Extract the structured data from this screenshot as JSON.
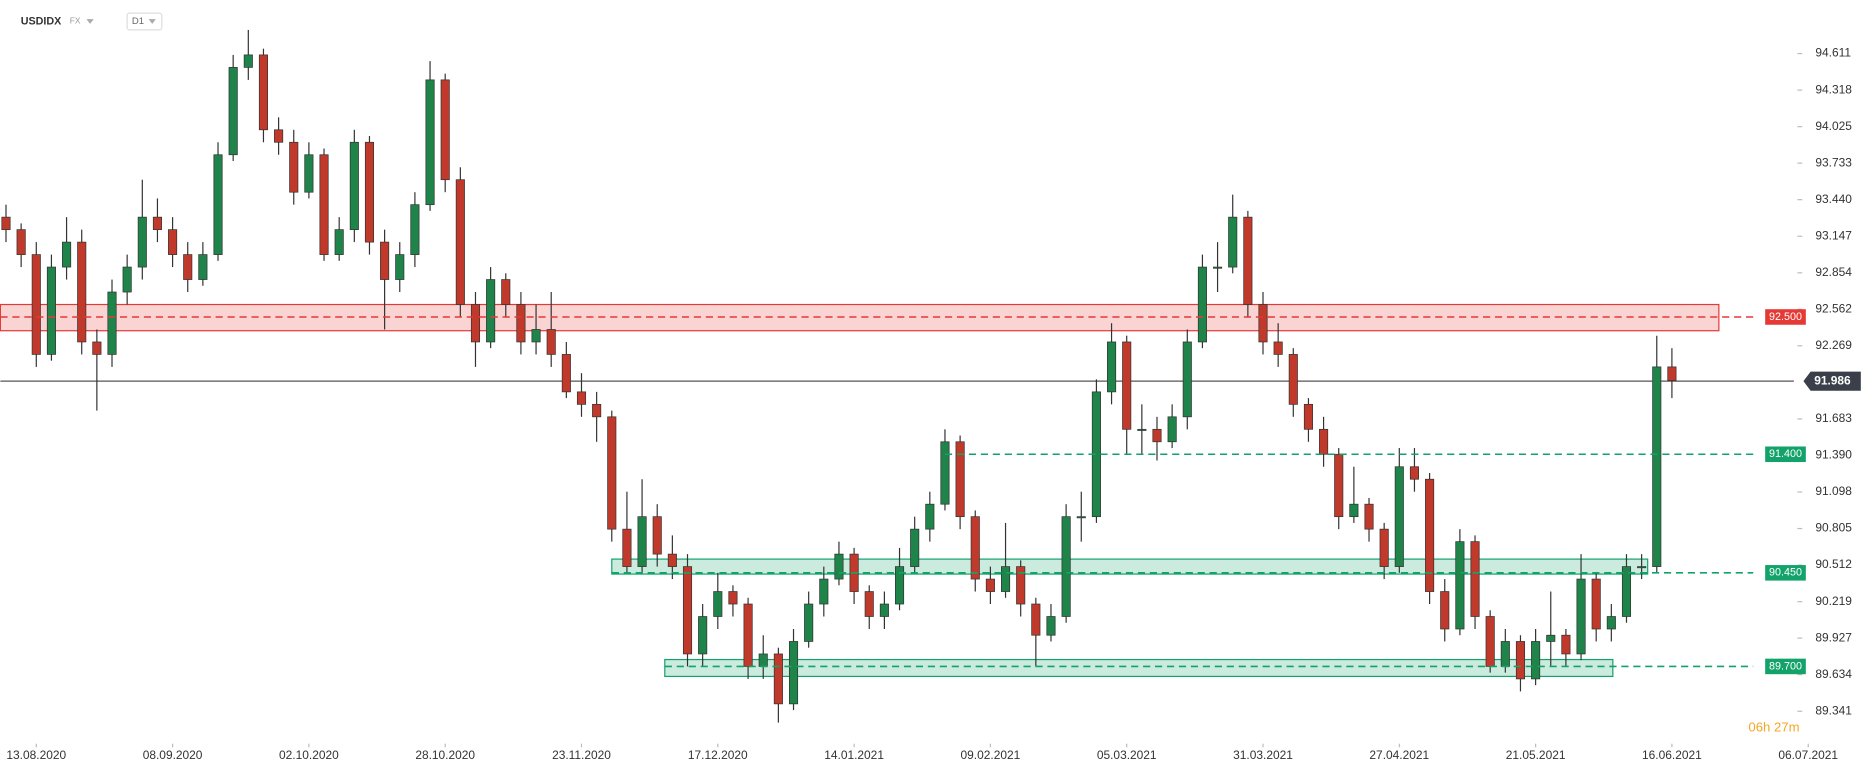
{
  "chart_data": {
    "type": "candlestick",
    "title": "USDIDX",
    "market": "FX",
    "interval": "D1",
    "countdown": "06h 27m",
    "up_color": "#1e8449",
    "down_color": "#c0392b",
    "xlim": [
      -0.37,
      119
    ],
    "xticks": [
      {
        "value": 2,
        "label": "13.08.2020"
      },
      {
        "value": 11,
        "label": "08.09.2020"
      },
      {
        "value": 20,
        "label": "02.10.2020"
      },
      {
        "value": 29,
        "label": "28.10.2020"
      },
      {
        "value": 38,
        "label": "23.11.2020"
      },
      {
        "value": 47,
        "label": "17.12.2020"
      },
      {
        "value": 56,
        "label": "14.01.2021"
      },
      {
        "value": 65,
        "label": "09.02.2021"
      },
      {
        "value": 74,
        "label": "05.03.2021"
      },
      {
        "value": 83,
        "label": "31.03.2021"
      },
      {
        "value": 92,
        "label": "27.04.2021"
      },
      {
        "value": 101,
        "label": "21.05.2021"
      },
      {
        "value": 110,
        "label": "16.06.2021"
      },
      {
        "value": 119,
        "label": "06.07.2021"
      }
    ],
    "ylim": [
      89.1,
      95.04
    ],
    "yticks": [
      94.611,
      94.318,
      94.025,
      93.733,
      {
        "value": 93.44,
        "label": "93.440"
      },
      93.147,
      92.854,
      92.562,
      92.269,
      91.683,
      {
        "value": 91.39,
        "label": "91.390"
      },
      91.098,
      90.805,
      90.512,
      90.219,
      89.927,
      89.634,
      89.341
    ],
    "last_price": 91.986,
    "levels": [
      {
        "value": 92.5,
        "label": "92.500",
        "color": "#e53935",
        "zone": [
          92.39,
          92.6
        ],
        "zone_x": [
          -0.37,
          113.1
        ],
        "line_from": -0.37
      },
      {
        "value": 91.4,
        "label": "91.400",
        "color": "#13a36a",
        "line_from": 62.0
      },
      {
        "value": 90.45,
        "label": "90.450",
        "color": "#13a36a",
        "zone": [
          90.44,
          90.56
        ],
        "zone_x": [
          40,
          108.4
        ],
        "line_from": 40
      },
      {
        "value": 89.7,
        "label": "89.700",
        "color": "#13a36a",
        "zone": [
          89.62,
          89.755
        ],
        "zone_x": [
          43.5,
          106.1
        ],
        "line_from": 43.5
      }
    ],
    "ohlc": [
      [
        93.3,
        93.4,
        93.1,
        93.2
      ],
      [
        93.2,
        93.25,
        92.9,
        93.0
      ],
      [
        93.0,
        93.1,
        92.1,
        92.2
      ],
      [
        92.2,
        93.0,
        92.15,
        92.9
      ],
      [
        92.9,
        93.3,
        92.8,
        93.1
      ],
      [
        93.1,
        93.2,
        92.2,
        92.3
      ],
      [
        92.3,
        92.4,
        91.75,
        92.2
      ],
      [
        92.2,
        92.8,
        92.1,
        92.7
      ],
      [
        92.7,
        93.0,
        92.6,
        92.9
      ],
      [
        92.9,
        93.6,
        92.8,
        93.3
      ],
      [
        93.3,
        93.45,
        93.1,
        93.2
      ],
      [
        93.2,
        93.3,
        92.9,
        93.0
      ],
      [
        93.0,
        93.1,
        92.7,
        92.8
      ],
      [
        92.8,
        93.1,
        92.75,
        93.0
      ],
      [
        93.0,
        93.9,
        92.95,
        93.8
      ],
      [
        93.8,
        94.6,
        93.75,
        94.5
      ],
      [
        94.5,
        94.8,
        94.4,
        94.6
      ],
      [
        94.6,
        94.65,
        93.9,
        94.0
      ],
      [
        94.0,
        94.1,
        93.8,
        93.9
      ],
      [
        93.9,
        94.0,
        93.4,
        93.5
      ],
      [
        93.5,
        93.9,
        93.45,
        93.8
      ],
      [
        93.8,
        93.85,
        92.95,
        93.0
      ],
      [
        93.0,
        93.3,
        92.95,
        93.2
      ],
      [
        93.2,
        94.0,
        93.1,
        93.9
      ],
      [
        93.9,
        93.95,
        93.0,
        93.1
      ],
      [
        93.1,
        93.2,
        92.4,
        92.8
      ],
      [
        92.8,
        93.1,
        92.7,
        93.0
      ],
      [
        93.0,
        93.5,
        92.9,
        93.4
      ],
      [
        93.4,
        94.55,
        93.35,
        94.4
      ],
      [
        94.4,
        94.45,
        93.5,
        93.6
      ],
      [
        93.6,
        93.7,
        92.5,
        92.6
      ],
      [
        92.6,
        92.7,
        92.1,
        92.3
      ],
      [
        92.3,
        92.9,
        92.25,
        92.8
      ],
      [
        92.8,
        92.85,
        92.5,
        92.6
      ],
      [
        92.6,
        92.7,
        92.2,
        92.3
      ],
      [
        92.3,
        92.6,
        92.2,
        92.4
      ],
      [
        92.4,
        92.7,
        92.1,
        92.2
      ],
      [
        92.2,
        92.3,
        91.85,
        91.9
      ],
      [
        91.9,
        92.05,
        91.7,
        91.8
      ],
      [
        91.8,
        91.9,
        91.5,
        91.7
      ],
      [
        91.7,
        91.75,
        90.7,
        90.8
      ],
      [
        90.8,
        91.1,
        90.45,
        90.5
      ],
      [
        90.5,
        91.2,
        90.45,
        90.9
      ],
      [
        90.9,
        91.0,
        90.5,
        90.6
      ],
      [
        90.6,
        90.75,
        90.4,
        90.5
      ],
      [
        90.5,
        90.6,
        89.7,
        89.8
      ],
      [
        89.8,
        90.2,
        89.7,
        90.1
      ],
      [
        90.1,
        90.45,
        90.0,
        90.3
      ],
      [
        90.3,
        90.35,
        90.1,
        90.2
      ],
      [
        90.2,
        90.25,
        89.6,
        89.7
      ],
      [
        89.7,
        89.95,
        89.6,
        89.8
      ],
      [
        89.8,
        89.85,
        89.25,
        89.4
      ],
      [
        89.4,
        90.0,
        89.35,
        89.9
      ],
      [
        89.9,
        90.3,
        89.85,
        90.2
      ],
      [
        90.2,
        90.5,
        90.1,
        90.4
      ],
      [
        90.4,
        90.7,
        90.35,
        90.6
      ],
      [
        90.6,
        90.65,
        90.2,
        90.3
      ],
      [
        90.3,
        90.35,
        90.0,
        90.1
      ],
      [
        90.1,
        90.3,
        90.0,
        90.2
      ],
      [
        90.2,
        90.65,
        90.15,
        90.5
      ],
      [
        90.5,
        90.9,
        90.45,
        90.8
      ],
      [
        90.8,
        91.1,
        90.7,
        91.0
      ],
      [
        91.0,
        91.6,
        90.95,
        91.5
      ],
      [
        91.5,
        91.55,
        90.8,
        90.9
      ],
      [
        90.9,
        90.95,
        90.3,
        90.4
      ],
      [
        90.4,
        90.5,
        90.2,
        90.3
      ],
      [
        90.3,
        90.85,
        90.25,
        90.5
      ],
      [
        90.5,
        90.55,
        90.1,
        90.2
      ],
      [
        90.2,
        90.25,
        89.7,
        89.95
      ],
      [
        89.95,
        90.2,
        89.9,
        90.1
      ],
      [
        90.1,
        91.0,
        90.05,
        90.9
      ],
      [
        90.9,
        91.1,
        90.7,
        90.9
      ],
      [
        90.9,
        92.0,
        90.85,
        91.9
      ],
      [
        91.9,
        92.45,
        91.8,
        92.3
      ],
      [
        92.3,
        92.35,
        91.4,
        91.6
      ],
      [
        91.6,
        91.8,
        91.4,
        91.6
      ],
      [
        91.6,
        91.7,
        91.35,
        91.5
      ],
      [
        91.5,
        91.8,
        91.45,
        91.7
      ],
      [
        91.7,
        92.4,
        91.6,
        92.3
      ],
      [
        92.3,
        93.0,
        92.25,
        92.9
      ],
      [
        92.9,
        93.1,
        92.7,
        92.9
      ],
      [
        92.9,
        93.48,
        92.85,
        93.3
      ],
      [
        93.3,
        93.35,
        92.5,
        92.6
      ],
      [
        92.6,
        92.7,
        92.2,
        92.3
      ],
      [
        92.3,
        92.45,
        92.1,
        92.2
      ],
      [
        92.2,
        92.25,
        91.7,
        91.8
      ],
      [
        91.8,
        91.85,
        91.5,
        91.6
      ],
      [
        91.6,
        91.7,
        91.3,
        91.4
      ],
      [
        91.4,
        91.45,
        90.8,
        90.9
      ],
      [
        90.9,
        91.3,
        90.85,
        91.0
      ],
      [
        91.0,
        91.05,
        90.7,
        90.8
      ],
      [
        90.8,
        90.85,
        90.4,
        90.5
      ],
      [
        90.5,
        91.45,
        90.45,
        91.3
      ],
      [
        91.3,
        91.45,
        91.1,
        91.2
      ],
      [
        91.2,
        91.25,
        90.2,
        90.3
      ],
      [
        90.3,
        90.4,
        89.9,
        90.0
      ],
      [
        90.0,
        90.8,
        89.95,
        90.7
      ],
      [
        90.7,
        90.75,
        90.0,
        90.1
      ],
      [
        90.1,
        90.15,
        89.65,
        89.7
      ],
      [
        89.7,
        90.0,
        89.65,
        89.9
      ],
      [
        89.9,
        89.95,
        89.5,
        89.6
      ],
      [
        89.6,
        90.0,
        89.55,
        89.9
      ],
      [
        89.9,
        90.3,
        89.7,
        89.95
      ],
      [
        89.95,
        90.0,
        89.7,
        89.8
      ],
      [
        89.8,
        90.6,
        89.75,
        90.4
      ],
      [
        90.4,
        90.45,
        89.9,
        90.0
      ],
      [
        90.0,
        90.2,
        89.9,
        90.1
      ],
      [
        90.1,
        90.6,
        90.05,
        90.5
      ],
      [
        90.5,
        90.6,
        90.4,
        90.5
      ],
      [
        90.5,
        92.35,
        90.45,
        92.1
      ],
      [
        92.1,
        92.25,
        91.85,
        91.99
      ]
    ]
  }
}
